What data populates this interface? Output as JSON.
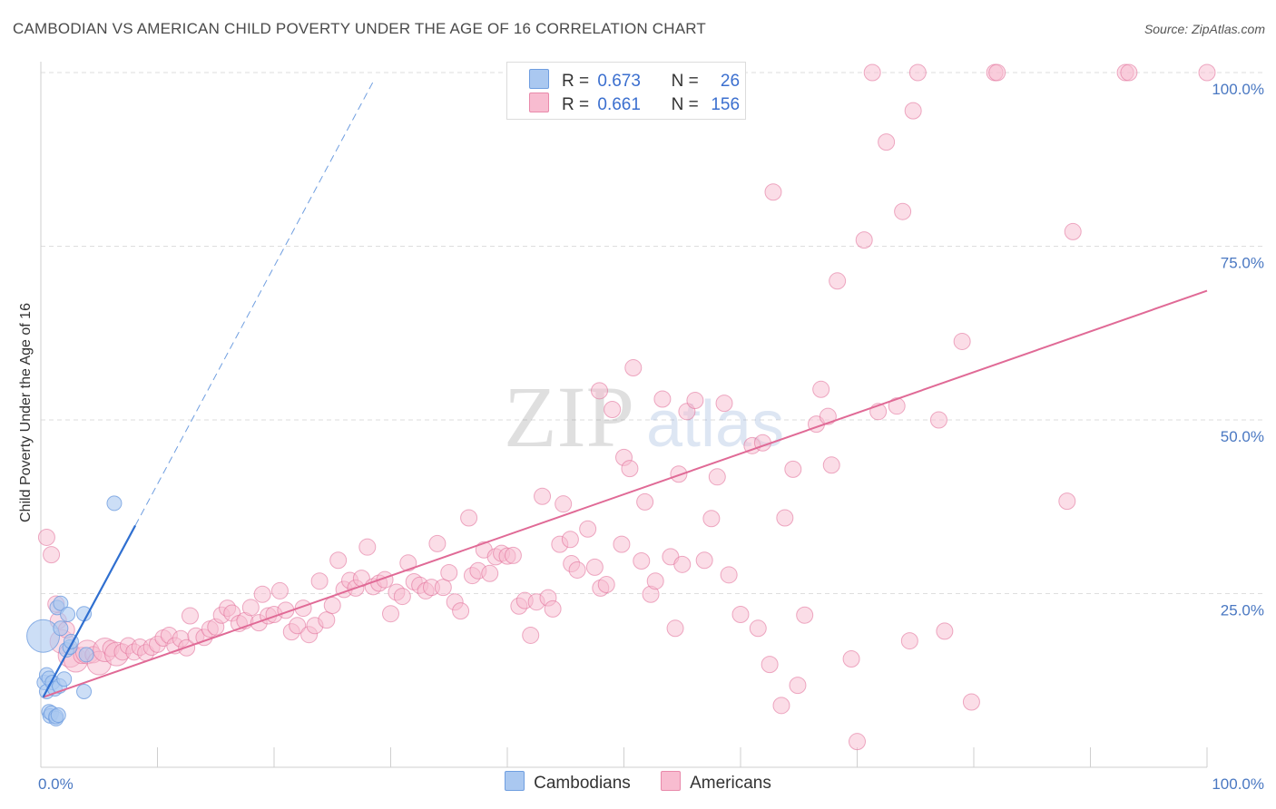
{
  "title": "CAMBODIAN VS AMERICAN CHILD POVERTY UNDER THE AGE OF 16 CORRELATION CHART",
  "source": "Source: ZipAtlas.com",
  "watermark": {
    "zip": "ZIP",
    "atlas": "atlas"
  },
  "legend": {
    "r_label": "R =",
    "n_label": "N =",
    "series": [
      {
        "name": "Cambodians",
        "r": "0.673",
        "n": "26",
        "fill": "#aac8f0",
        "stroke": "#6f9ee0"
      },
      {
        "name": "Americans",
        "r": "0.661",
        "n": "156",
        "fill": "#f8bcd0",
        "stroke": "#e98aab"
      }
    ]
  },
  "chart_data": {
    "type": "scatter",
    "title": "CAMBODIAN VS AMERICAN CHILD POVERTY UNDER THE AGE OF 16 CORRELATION CHART",
    "xlabel": "",
    "ylabel": "Child Poverty Under the Age of 16",
    "xlim": [
      0,
      100
    ],
    "ylim": [
      0,
      100
    ],
    "x_tick_labels": [
      "0.0%",
      "100.0%"
    ],
    "y_tick_labels": [
      "25.0%",
      "50.0%",
      "75.0%",
      "100.0%"
    ],
    "y_ticks": [
      25,
      50,
      75,
      100
    ],
    "grid": true,
    "series": [
      {
        "name": "Cambodians",
        "color": "#6f9ee0",
        "fill": "#aac8f0",
        "trend": {
          "x0": 0.2,
          "y0": 10.1,
          "x1": 8.1,
          "y1": 34.8,
          "dashed_to_x": 28.5,
          "dashed_to_y": 98.7
        },
        "points": [
          [
            0.2,
            18.9,
            3
          ],
          [
            0.3,
            12.2,
            1
          ],
          [
            0.5,
            10.9,
            1
          ],
          [
            0.5,
            13.3,
            1
          ],
          [
            0.7,
            12.8,
            1
          ],
          [
            0.7,
            8.0,
            1
          ],
          [
            0.8,
            7.4,
            1
          ],
          [
            0.9,
            7.8,
            1
          ],
          [
            1.0,
            12.2,
            1
          ],
          [
            1.2,
            11.3,
            1
          ],
          [
            1.3,
            7.0,
            1
          ],
          [
            1.3,
            7.3,
            1
          ],
          [
            1.4,
            23.0,
            1
          ],
          [
            1.5,
            7.5,
            1
          ],
          [
            1.6,
            11.7,
            1
          ],
          [
            1.7,
            23.6,
            1
          ],
          [
            1.7,
            20.0,
            1
          ],
          [
            2.0,
            12.7,
            1
          ],
          [
            2.2,
            16.9,
            1
          ],
          [
            2.3,
            22.0,
            1
          ],
          [
            2.5,
            17.3,
            1
          ],
          [
            2.6,
            18.1,
            1
          ],
          [
            3.7,
            22.1,
            1
          ],
          [
            3.7,
            10.9,
            1
          ],
          [
            3.9,
            16.2,
            1
          ],
          [
            6.3,
            38.0,
            1
          ]
        ]
      },
      {
        "name": "Americans",
        "color": "#e06a96",
        "fill": "#f8bcd0",
        "trend": {
          "x0": 0.2,
          "y0": 10.1,
          "x1": 100.0,
          "y1": 68.6
        },
        "points": [
          [
            0.5,
            33.1,
            1
          ],
          [
            0.9,
            30.6,
            1
          ],
          [
            1.3,
            23.5,
            1
          ],
          [
            1.5,
            21.1,
            1
          ],
          [
            1.8,
            18.1,
            2
          ],
          [
            2.2,
            19.8,
            1
          ],
          [
            2.5,
            16.1,
            2
          ],
          [
            3.0,
            15.4,
            2
          ],
          [
            3.5,
            16.1,
            1
          ],
          [
            4.0,
            16.6,
            2
          ],
          [
            4.5,
            16.2,
            1
          ],
          [
            5.0,
            15.0,
            2
          ],
          [
            5.5,
            16.9,
            2
          ],
          [
            6.0,
            17.1,
            1
          ],
          [
            6.5,
            16.3,
            2
          ],
          [
            7.0,
            16.6,
            1
          ],
          [
            7.5,
            17.5,
            1
          ],
          [
            8.0,
            16.6,
            1
          ],
          [
            8.5,
            17.3,
            1
          ],
          [
            9.0,
            16.5,
            1
          ],
          [
            9.5,
            17.3,
            1
          ],
          [
            10.0,
            17.7,
            1
          ],
          [
            10.5,
            18.6,
            1
          ],
          [
            11.0,
            19.0,
            1
          ],
          [
            11.5,
            17.5,
            1
          ],
          [
            12.0,
            18.5,
            1
          ],
          [
            12.5,
            17.2,
            1
          ],
          [
            12.8,
            21.8,
            1
          ],
          [
            13.3,
            18.9,
            1
          ],
          [
            14.0,
            18.7,
            1
          ],
          [
            14.5,
            19.9,
            1
          ],
          [
            15.0,
            20.2,
            1
          ],
          [
            15.5,
            21.9,
            1
          ],
          [
            16.0,
            22.9,
            1
          ],
          [
            16.4,
            22.2,
            1
          ],
          [
            17.0,
            20.7,
            1
          ],
          [
            17.5,
            21.1,
            1
          ],
          [
            18.0,
            23.0,
            1
          ],
          [
            18.7,
            20.8,
            1
          ],
          [
            19.0,
            24.9,
            1
          ],
          [
            19.5,
            21.8,
            1
          ],
          [
            20.0,
            22.0,
            1
          ],
          [
            20.5,
            25.4,
            1
          ],
          [
            21.0,
            22.6,
            1
          ],
          [
            21.5,
            19.5,
            1
          ],
          [
            22.0,
            20.4,
            1
          ],
          [
            22.5,
            22.9,
            1
          ],
          [
            23.0,
            19.1,
            1
          ],
          [
            23.5,
            20.4,
            1
          ],
          [
            23.9,
            26.8,
            1
          ],
          [
            24.5,
            21.2,
            1
          ],
          [
            25.0,
            23.3,
            1
          ],
          [
            25.5,
            29.8,
            1
          ],
          [
            26.0,
            25.6,
            1
          ],
          [
            26.5,
            26.9,
            1
          ],
          [
            27.0,
            25.8,
            1
          ],
          [
            27.5,
            27.2,
            1
          ],
          [
            28.0,
            31.7,
            1
          ],
          [
            28.5,
            26.0,
            1
          ],
          [
            29.0,
            26.5,
            1
          ],
          [
            29.5,
            27.0,
            1
          ],
          [
            30.0,
            22.1,
            1
          ],
          [
            30.5,
            25.2,
            1
          ],
          [
            31.0,
            24.6,
            1
          ],
          [
            31.5,
            29.4,
            1
          ],
          [
            32.0,
            26.7,
            1
          ],
          [
            32.5,
            26.2,
            1
          ],
          [
            33.0,
            25.4,
            1
          ],
          [
            33.5,
            25.9,
            1
          ],
          [
            34.0,
            32.2,
            1
          ],
          [
            34.5,
            25.9,
            1
          ],
          [
            35.0,
            28.0,
            1
          ],
          [
            35.5,
            23.8,
            1
          ],
          [
            36.0,
            22.5,
            1
          ],
          [
            36.7,
            35.9,
            1
          ],
          [
            37.0,
            27.6,
            1
          ],
          [
            37.5,
            28.3,
            1
          ],
          [
            38.0,
            31.3,
            1
          ],
          [
            38.5,
            27.9,
            1
          ],
          [
            39.0,
            30.3,
            1
          ],
          [
            39.5,
            30.8,
            1
          ],
          [
            40.0,
            30.4,
            1
          ],
          [
            40.5,
            30.5,
            1
          ],
          [
            41.0,
            23.2,
            1
          ],
          [
            41.5,
            24.0,
            1
          ],
          [
            42.0,
            19.0,
            1
          ],
          [
            42.5,
            23.8,
            1
          ],
          [
            43.0,
            39.0,
            1
          ],
          [
            43.5,
            24.4,
            1
          ],
          [
            43.9,
            22.8,
            1
          ],
          [
            44.5,
            32.1,
            1
          ],
          [
            44.8,
            37.9,
            1
          ],
          [
            45.4,
            32.8,
            1
          ],
          [
            45.5,
            29.3,
            1
          ],
          [
            46.0,
            28.4,
            1
          ],
          [
            46.9,
            34.3,
            1
          ],
          [
            47.5,
            28.8,
            1
          ],
          [
            47.9,
            54.2,
            1
          ],
          [
            48.0,
            25.8,
            1
          ],
          [
            48.5,
            26.3,
            1
          ],
          [
            49.0,
            51.5,
            1
          ],
          [
            49.8,
            32.1,
            1
          ],
          [
            50.0,
            44.6,
            1
          ],
          [
            50.5,
            43.0,
            1
          ],
          [
            50.8,
            57.5,
            1
          ],
          [
            51.5,
            29.7,
            1
          ],
          [
            51.8,
            38.2,
            1
          ],
          [
            52.3,
            24.9,
            1
          ],
          [
            52.7,
            26.8,
            1
          ],
          [
            53.3,
            53.0,
            1
          ],
          [
            54.0,
            30.3,
            1
          ],
          [
            54.4,
            20.0,
            1
          ],
          [
            54.7,
            42.2,
            1
          ],
          [
            55.0,
            29.2,
            1
          ],
          [
            55.4,
            51.2,
            1
          ],
          [
            56.1,
            52.8,
            1
          ],
          [
            56.9,
            29.8,
            1
          ],
          [
            57.5,
            35.8,
            1
          ],
          [
            58.0,
            41.8,
            1
          ],
          [
            58.6,
            52.4,
            1
          ],
          [
            59.0,
            27.7,
            1
          ],
          [
            60.0,
            22.0,
            1
          ],
          [
            61.0,
            46.3,
            1
          ],
          [
            61.5,
            20.0,
            1
          ],
          [
            61.9,
            46.7,
            1
          ],
          [
            62.5,
            14.8,
            1
          ],
          [
            62.8,
            82.8,
            1
          ],
          [
            63.5,
            8.9,
            1
          ],
          [
            63.8,
            35.9,
            1
          ],
          [
            64.5,
            42.9,
            1
          ],
          [
            64.9,
            11.8,
            1
          ],
          [
            65.5,
            21.9,
            1
          ],
          [
            66.5,
            49.4,
            1
          ],
          [
            66.9,
            54.4,
            1
          ],
          [
            67.5,
            50.5,
            1
          ],
          [
            67.8,
            43.5,
            1
          ],
          [
            68.3,
            70.0,
            1
          ],
          [
            69.5,
            15.6,
            1
          ],
          [
            70.0,
            3.7,
            1
          ],
          [
            70.6,
            75.9,
            1
          ],
          [
            71.3,
            100.0,
            1
          ],
          [
            71.8,
            51.2,
            1
          ],
          [
            72.5,
            90.0,
            1
          ],
          [
            73.4,
            52.0,
            1
          ],
          [
            73.9,
            80.0,
            1
          ],
          [
            74.5,
            18.2,
            1
          ],
          [
            74.8,
            94.5,
            1
          ],
          [
            75.2,
            100.0,
            1
          ],
          [
            77.0,
            50.0,
            1
          ],
          [
            77.5,
            19.6,
            1
          ],
          [
            79.0,
            61.3,
            1
          ],
          [
            79.8,
            9.4,
            1
          ],
          [
            81.8,
            100.0,
            1
          ],
          [
            82.0,
            100.0,
            1
          ],
          [
            88.0,
            38.3,
            1
          ],
          [
            88.5,
            77.1,
            1
          ],
          [
            93.0,
            100.0,
            1
          ],
          [
            93.3,
            100.0,
            1
          ],
          [
            100.0,
            100.0,
            1
          ]
        ]
      }
    ]
  }
}
